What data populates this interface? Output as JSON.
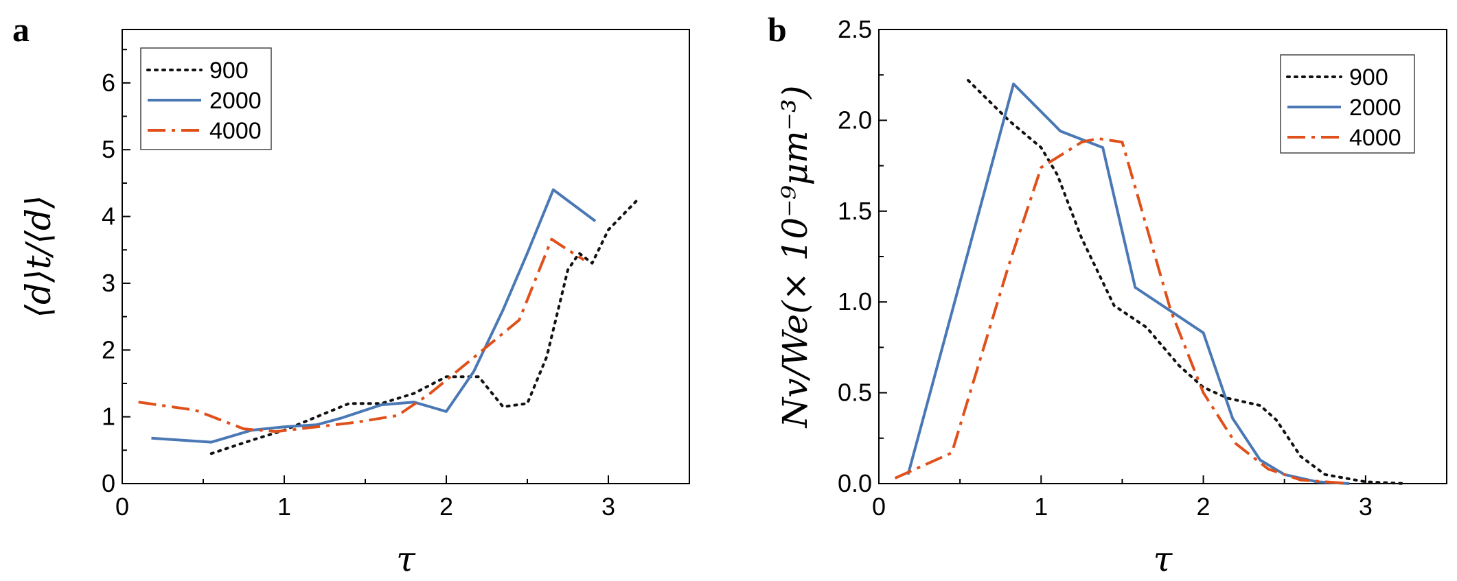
{
  "colors": {
    "s900": "#111111",
    "s2000": "#4a78b5",
    "s4000": "#e0501a"
  },
  "chart_data": [
    {
      "type": "line",
      "panel_label": "a",
      "xlabel": "τ",
      "ylabel": "⟨d⟩t/⟨d⟩",
      "xlim": [
        0,
        3.5
      ],
      "ylim": [
        0,
        6.8
      ],
      "xticks": [
        0,
        1,
        2,
        3
      ],
      "xtick_labels": [
        "0",
        "1",
        "2",
        "3"
      ],
      "yticks": [
        0,
        1,
        2,
        3,
        4,
        5,
        6
      ],
      "ytick_labels": [
        "0",
        "1",
        "2",
        "3",
        "4",
        "5",
        "6"
      ],
      "legend_position": "top-left",
      "series": [
        {
          "name": "900",
          "style": "dotted",
          "color_key": "s900",
          "x": [
            0.55,
            0.8,
            1.0,
            1.25,
            1.4,
            1.6,
            1.8,
            2.0,
            2.2,
            2.35,
            2.5,
            2.62,
            2.75,
            2.82,
            2.9,
            3.0,
            3.18
          ],
          "y": [
            0.45,
            0.65,
            0.8,
            1.05,
            1.2,
            1.2,
            1.35,
            1.6,
            1.6,
            1.15,
            1.2,
            1.9,
            3.2,
            3.45,
            3.3,
            3.8,
            4.25
          ]
        },
        {
          "name": "2000",
          "style": "solid",
          "color_key": "s2000",
          "x": [
            0.18,
            0.55,
            0.8,
            1.0,
            1.2,
            1.35,
            1.6,
            1.8,
            2.0,
            2.17,
            2.35,
            2.5,
            2.66,
            2.92
          ],
          "y": [
            0.68,
            0.62,
            0.8,
            0.85,
            0.88,
            0.98,
            1.18,
            1.22,
            1.08,
            1.68,
            2.6,
            3.45,
            4.4,
            3.93
          ]
        },
        {
          "name": "4000",
          "style": "dashdot",
          "color_key": "s4000",
          "x": [
            0.1,
            0.45,
            0.75,
            0.95,
            1.2,
            1.45,
            1.7,
            1.9,
            2.2,
            2.45,
            2.65,
            2.75,
            2.85
          ],
          "y": [
            1.22,
            1.1,
            0.82,
            0.78,
            0.85,
            0.92,
            1.02,
            1.35,
            1.95,
            2.45,
            3.66,
            3.5,
            3.35
          ]
        }
      ]
    },
    {
      "type": "line",
      "panel_label": "b",
      "xlabel": "τ",
      "ylabel": "Nv/We(× 10⁻⁹μm⁻³)",
      "xlim": [
        0,
        3.5
      ],
      "ylim": [
        0,
        2.5
      ],
      "xticks": [
        0,
        1,
        2,
        3
      ],
      "xtick_labels": [
        "0",
        "1",
        "2",
        "3"
      ],
      "yticks": [
        0,
        0.5,
        1.0,
        1.5,
        2.0,
        2.5
      ],
      "ytick_labels": [
        "0.0",
        "0.5",
        "1.0",
        "1.5",
        "2.0",
        "2.5"
      ],
      "legend_position": "top-right",
      "series": [
        {
          "name": "900",
          "style": "dotted",
          "color_key": "s900",
          "x": [
            0.55,
            0.8,
            1.0,
            1.1,
            1.25,
            1.45,
            1.65,
            1.85,
            2.0,
            2.15,
            2.35,
            2.45,
            2.6,
            2.75,
            3.0,
            3.25
          ],
          "y": [
            2.22,
            2.0,
            1.85,
            1.7,
            1.35,
            0.98,
            0.86,
            0.65,
            0.53,
            0.47,
            0.43,
            0.35,
            0.15,
            0.05,
            0.01,
            0.0
          ]
        },
        {
          "name": "2000",
          "style": "solid",
          "color_key": "s2000",
          "x": [
            0.18,
            0.83,
            1.12,
            1.38,
            1.58,
            2.0,
            2.18,
            2.35,
            2.5,
            2.7,
            2.9
          ],
          "y": [
            0.05,
            2.2,
            1.94,
            1.85,
            1.08,
            0.83,
            0.36,
            0.13,
            0.05,
            0.01,
            0.0
          ]
        },
        {
          "name": "4000",
          "style": "dashdot",
          "color_key": "s4000",
          "x": [
            0.1,
            0.45,
            0.8,
            1.0,
            1.25,
            1.35,
            1.5,
            1.8,
            2.0,
            2.2,
            2.4,
            2.6,
            2.9
          ],
          "y": [
            0.03,
            0.17,
            1.2,
            1.74,
            1.88,
            1.9,
            1.88,
            0.95,
            0.5,
            0.22,
            0.08,
            0.02,
            0.0
          ]
        }
      ]
    }
  ]
}
